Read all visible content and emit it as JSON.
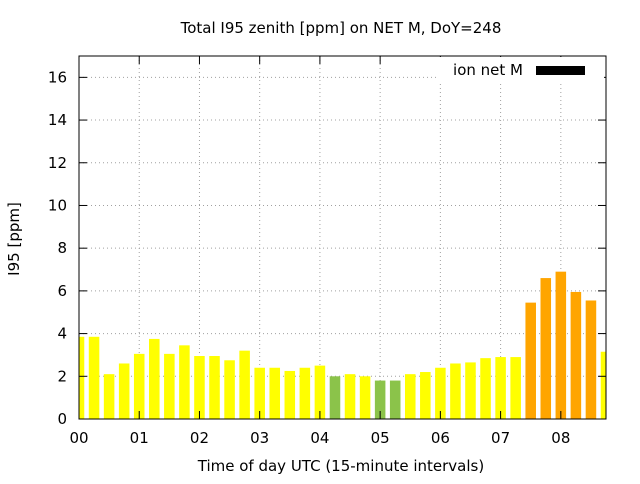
{
  "chart_data": {
    "type": "bar",
    "title": "Total I95 zenith [ppm] on NET M, DoY=248",
    "xlabel": "Time of day UTC (15-minute intervals)",
    "ylabel": "I95 [ppm]",
    "ylim": [
      0,
      17
    ],
    "yticks": [
      0,
      2,
      4,
      6,
      8,
      10,
      12,
      14,
      16
    ],
    "xlim_hours": [
      0,
      8.75
    ],
    "xticks": [
      {
        "hour": 0,
        "label": "00"
      },
      {
        "hour": 1,
        "label": "01"
      },
      {
        "hour": 2,
        "label": "02"
      },
      {
        "hour": 3,
        "label": "03"
      },
      {
        "hour": 4,
        "label": "04"
      },
      {
        "hour": 5,
        "label": "05"
      },
      {
        "hour": 6,
        "label": "06"
      },
      {
        "hour": 7,
        "label": "07"
      },
      {
        "hour": 8,
        "label": "08"
      }
    ],
    "grid": true,
    "legend": {
      "label": "ion net M",
      "position": "top-right",
      "color": "#000000"
    },
    "colors": {
      "yellow": "#ffff00",
      "green": "#8bc34a",
      "orange": "#ffa500"
    },
    "series": [
      {
        "name": "ion net M",
        "points": [
          {
            "hour": 0.0,
            "value": 3.85,
            "color": "yellow"
          },
          {
            "hour": 0.25,
            "value": 3.85,
            "color": "yellow"
          },
          {
            "hour": 0.5,
            "value": 2.1,
            "color": "yellow"
          },
          {
            "hour": 0.75,
            "value": 2.6,
            "color": "yellow"
          },
          {
            "hour": 1.0,
            "value": 3.05,
            "color": "yellow"
          },
          {
            "hour": 1.25,
            "value": 3.75,
            "color": "yellow"
          },
          {
            "hour": 1.5,
            "value": 3.05,
            "color": "yellow"
          },
          {
            "hour": 1.75,
            "value": 3.45,
            "color": "yellow"
          },
          {
            "hour": 2.0,
            "value": 2.95,
            "color": "yellow"
          },
          {
            "hour": 2.25,
            "value": 2.95,
            "color": "yellow"
          },
          {
            "hour": 2.5,
            "value": 2.75,
            "color": "yellow"
          },
          {
            "hour": 2.75,
            "value": 3.2,
            "color": "yellow"
          },
          {
            "hour": 3.0,
            "value": 2.4,
            "color": "yellow"
          },
          {
            "hour": 3.25,
            "value": 2.4,
            "color": "yellow"
          },
          {
            "hour": 3.5,
            "value": 2.25,
            "color": "yellow"
          },
          {
            "hour": 3.75,
            "value": 2.4,
            "color": "yellow"
          },
          {
            "hour": 4.0,
            "value": 2.5,
            "color": "yellow"
          },
          {
            "hour": 4.25,
            "value": 2.0,
            "color": "green"
          },
          {
            "hour": 4.5,
            "value": 2.1,
            "color": "yellow"
          },
          {
            "hour": 4.75,
            "value": 2.0,
            "color": "yellow"
          },
          {
            "hour": 5.0,
            "value": 1.8,
            "color": "green"
          },
          {
            "hour": 5.25,
            "value": 1.8,
            "color": "green"
          },
          {
            "hour": 5.5,
            "value": 2.1,
            "color": "yellow"
          },
          {
            "hour": 5.75,
            "value": 2.2,
            "color": "yellow"
          },
          {
            "hour": 6.0,
            "value": 2.4,
            "color": "yellow"
          },
          {
            "hour": 6.25,
            "value": 2.6,
            "color": "yellow"
          },
          {
            "hour": 6.5,
            "value": 2.65,
            "color": "yellow"
          },
          {
            "hour": 6.75,
            "value": 2.85,
            "color": "yellow"
          },
          {
            "hour": 7.0,
            "value": 2.9,
            "color": "yellow"
          },
          {
            "hour": 7.25,
            "value": 2.9,
            "color": "yellow"
          },
          {
            "hour": 7.5,
            "value": 5.45,
            "color": "orange"
          },
          {
            "hour": 7.75,
            "value": 6.6,
            "color": "orange"
          },
          {
            "hour": 8.0,
            "value": 6.9,
            "color": "orange"
          },
          {
            "hour": 8.25,
            "value": 5.95,
            "color": "orange"
          },
          {
            "hour": 8.5,
            "value": 5.55,
            "color": "orange"
          },
          {
            "hour": 8.75,
            "value": 3.15,
            "color": "yellow"
          }
        ]
      }
    ]
  }
}
